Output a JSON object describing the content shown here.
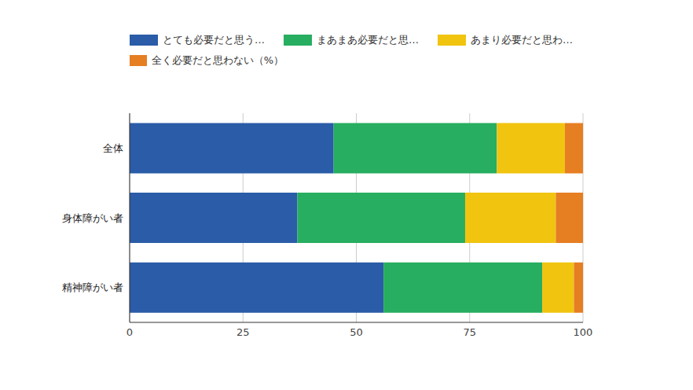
{
  "chart_data": {
    "type": "bar",
    "orientation": "horizontal",
    "stacked": true,
    "grid": true,
    "legend": "top",
    "categories": [
      "全体",
      "身体障がい者",
      "精神障がい者"
    ],
    "series": [
      {
        "name": "とても必要だと思う…",
        "color": "#2a5ca8",
        "values": [
          45,
          37,
          56
        ]
      },
      {
        "name": "まあまあ必要だと思…",
        "color": "#27ae60",
        "values": [
          36,
          37,
          35
        ]
      },
      {
        "name": "あまり必要だと思わ…",
        "color": "#f1c40f",
        "values": [
          15,
          20,
          7
        ]
      },
      {
        "name": "全く必要だと思わない（%）",
        "color": "#e67e22",
        "values": [
          4,
          6,
          2
        ]
      }
    ],
    "xlim": [
      0,
      100
    ],
    "xticks": [
      0,
      25,
      50,
      75,
      100
    ]
  }
}
